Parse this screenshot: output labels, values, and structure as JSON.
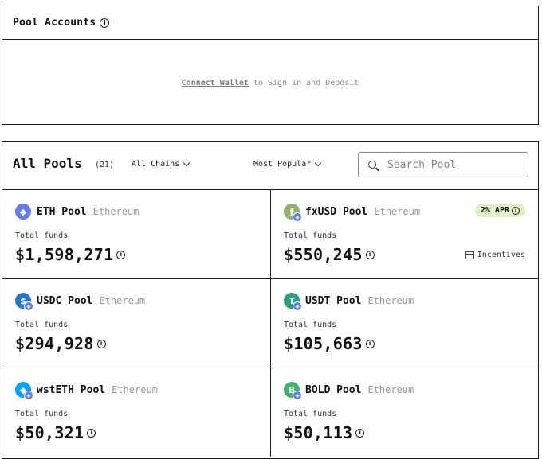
{
  "accounts": {
    "title": "Pool Accounts",
    "connect_link": "Connect Wallet",
    "connect_suffix": "to Sign in and Deposit"
  },
  "pools_header": {
    "title": "All Pools",
    "count": "(21)",
    "chains_dropdown": "All Chains",
    "sort_dropdown": "Most Popular",
    "search_placeholder": "Search Pool"
  },
  "pools": [
    {
      "name": "ETH Pool",
      "chain": "Ethereum",
      "label": "Total funds",
      "amount": "$1,598,271",
      "icon_color": "#627eea",
      "icon_name": "eth-icon"
    },
    {
      "name": "fxUSD Pool",
      "chain": "Ethereum",
      "label": "Total funds",
      "amount": "$550,245",
      "apr": "2% APR",
      "incentives": "Incentives",
      "icon_color": "#8fb36a",
      "icon_name": "fxusd-icon"
    },
    {
      "name": "USDC Pool",
      "chain": "Ethereum",
      "label": "Total funds",
      "amount": "$294,928",
      "icon_color": "#2775ca",
      "icon_name": "usdc-icon"
    },
    {
      "name": "USDT Pool",
      "chain": "Ethereum",
      "label": "Total funds",
      "amount": "$105,663",
      "icon_color": "#26a17b",
      "icon_name": "usdt-icon"
    },
    {
      "name": "wstETH Pool",
      "chain": "Ethereum",
      "label": "Total funds",
      "amount": "$50,321",
      "icon_color": "#00a3ff",
      "icon_name": "wsteth-icon"
    },
    {
      "name": "BOLD Pool",
      "chain": "Ethereum",
      "label": "Total funds",
      "amount": "$50,113",
      "icon_color": "#3fb56a",
      "icon_name": "bold-icon"
    }
  ]
}
